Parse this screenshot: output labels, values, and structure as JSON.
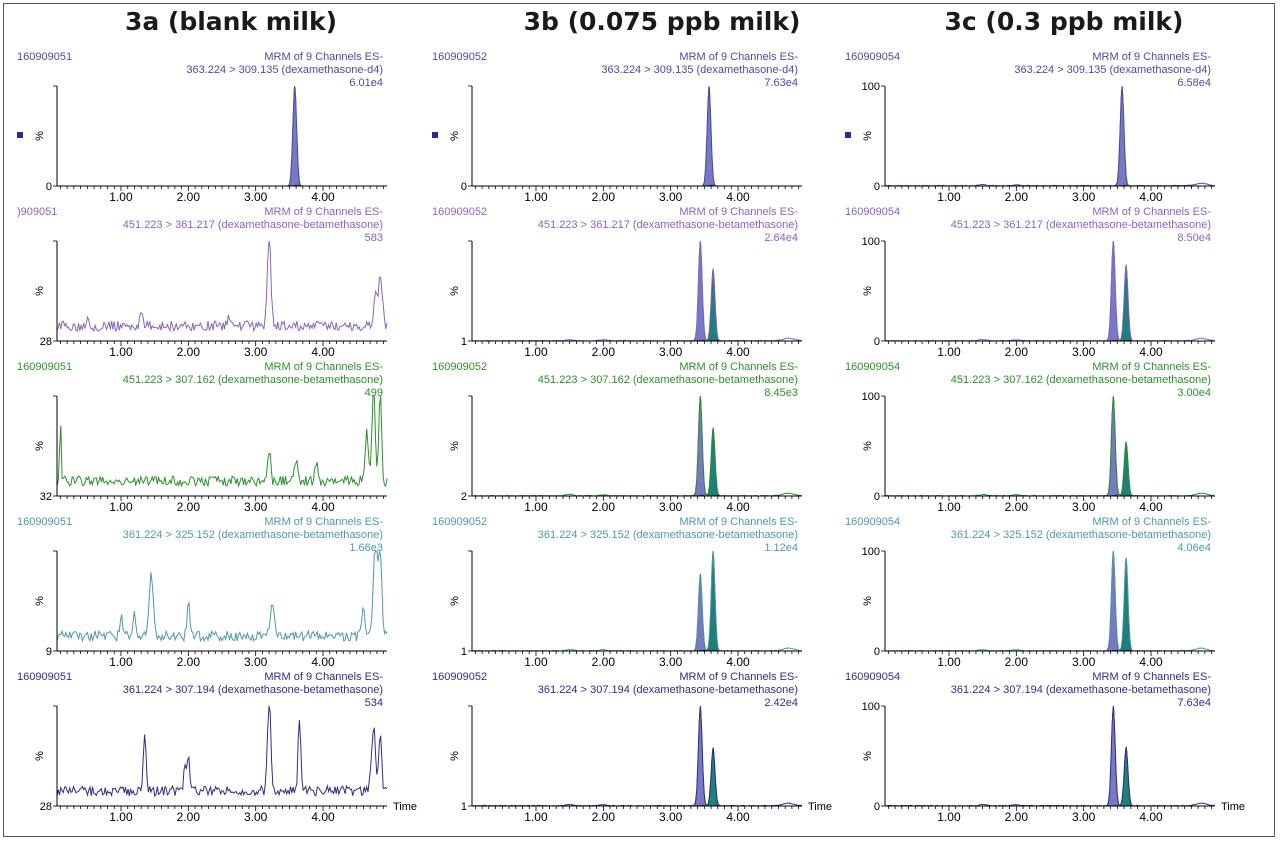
{
  "column_titles": [
    "3a (blank milk)",
    "3b (0.075 ppb milk)",
    "3c (0.3 ppb milk)"
  ],
  "header_label": "MRM of 9 Channels ES-",
  "percent_label": "%",
  "time_label": "Time",
  "colors": {
    "ch1": "#4b4ba5",
    "ch2": "#8a64c0",
    "ch3": "#2f8f2f",
    "ch4": "#4f9aa6",
    "ch5": "#2e2e86",
    "peak_fill_a": "#7779c4",
    "peak_fill_b": "#1f7f7a"
  },
  "chart_data": {
    "type": "line",
    "x_range": [
      0.05,
      4.95
    ],
    "x_ticks": [
      1.0,
      2.0,
      3.0,
      4.0
    ],
    "x_tick_labels": [
      "1.00",
      "2.00",
      "3.00",
      "4.00"
    ],
    "columns": [
      {
        "column": "3a (blank milk)",
        "rows": [
          {
            "sample_id": "160909051",
            "transition": "363.224 > 309.135 (dexamethasone-d4)",
            "intensity": "6.01e4",
            "y_min_label": "0",
            "y_max_label": "",
            "marker": true,
            "peaks": [
              {
                "rt": 3.58,
                "height": 1.0
              }
            ],
            "noise": "none"
          },
          {
            "sample_id": ")909051",
            "transition": "451.223 > 361.217 (dexamethasone-betamethasone)",
            "intensity": "583",
            "y_min_label": "28",
            "y_max_label": "",
            "marker": false,
            "peaks": [],
            "noise": "blank1"
          },
          {
            "sample_id": "160909051",
            "transition": "451.223 > 307.162 (dexamethasone-betamethasone)",
            "intensity": "499",
            "y_min_label": "32",
            "y_max_label": "",
            "marker": false,
            "peaks": [],
            "noise": "blank2"
          },
          {
            "sample_id": "160909051",
            "transition": "361.224 > 325.152 (dexamethasone-betamethasone)",
            "intensity": "1.66e3",
            "y_min_label": "9",
            "y_max_label": "",
            "marker": false,
            "peaks": [],
            "noise": "blank3"
          },
          {
            "sample_id": "160909051",
            "transition": "361.224 > 307.194 (dexamethasone-betamethasone)",
            "intensity": "534",
            "y_min_label": "28",
            "y_max_label": "",
            "marker": false,
            "peaks": [],
            "noise": "blank4"
          }
        ]
      },
      {
        "column": "3b (0.075 ppb milk)",
        "rows": [
          {
            "sample_id": "160909052",
            "transition": "363.224 > 309.135 (dexamethasone-d4)",
            "intensity": "7.63e4",
            "y_min_label": "0",
            "y_max_label": "",
            "marker": true,
            "peaks": [
              {
                "rt": 3.57,
                "height": 1.0
              }
            ],
            "noise": "none"
          },
          {
            "sample_id": "160909052",
            "transition": "451.223 > 361.217 (dexamethasone-betamethasone)",
            "intensity": "2.64e4",
            "y_min_label": "1",
            "y_max_label": "",
            "marker": false,
            "peaks": [
              {
                "rt": 3.44,
                "height": 1.0
              },
              {
                "rt": 3.63,
                "height": 0.72
              }
            ],
            "noise": "low"
          },
          {
            "sample_id": "160909052",
            "transition": "451.223 > 307.162 (dexamethasone-betamethasone)",
            "intensity": "8.45e3",
            "y_min_label": "2",
            "y_max_label": "",
            "marker": false,
            "peaks": [
              {
                "rt": 3.44,
                "height": 1.0
              },
              {
                "rt": 3.63,
                "height": 0.68
              }
            ],
            "noise": "low"
          },
          {
            "sample_id": "160909052",
            "transition": "361.224 > 325.152 (dexamethasone-betamethasone)",
            "intensity": "1.12e4",
            "y_min_label": "1",
            "y_max_label": "",
            "marker": false,
            "peaks": [
              {
                "rt": 3.44,
                "height": 0.77
              },
              {
                "rt": 3.63,
                "height": 1.0
              }
            ],
            "noise": "low"
          },
          {
            "sample_id": "160909052",
            "transition": "361.224 > 307.194 (dexamethasone-betamethasone)",
            "intensity": "2.42e4",
            "y_min_label": "1",
            "y_max_label": "",
            "marker": false,
            "peaks": [
              {
                "rt": 3.44,
                "height": 1.0
              },
              {
                "rt": 3.63,
                "height": 0.58
              }
            ],
            "noise": "low"
          }
        ]
      },
      {
        "column": "3c (0.3 ppb milk)",
        "rows": [
          {
            "sample_id": "160909054",
            "transition": "363.224 > 309.135 (dexamethasone-d4)",
            "intensity": "6.58e4",
            "y_min_label": "0",
            "y_max_label": "100",
            "marker": true,
            "peaks": [
              {
                "rt": 3.57,
                "height": 1.0
              }
            ],
            "noise": "low"
          },
          {
            "sample_id": "160909054",
            "transition": "451.223 > 361.217 (dexamethasone-betamethasone)",
            "intensity": "8.50e4",
            "y_min_label": "0",
            "y_max_label": "100",
            "marker": false,
            "peaks": [
              {
                "rt": 3.44,
                "height": 1.0
              },
              {
                "rt": 3.63,
                "height": 0.76
              }
            ],
            "noise": "low"
          },
          {
            "sample_id": "160909054",
            "transition": "451.223 > 307.162 (dexamethasone-betamethasone)",
            "intensity": "3.00e4",
            "y_min_label": "0",
            "y_max_label": "100",
            "marker": false,
            "peaks": [
              {
                "rt": 3.44,
                "height": 1.0
              },
              {
                "rt": 3.63,
                "height": 0.54
              }
            ],
            "noise": "low"
          },
          {
            "sample_id": "160909054",
            "transition": "361.224 > 325.152 (dexamethasone-betamethasone)",
            "intensity": "4.06e4",
            "y_min_label": "0",
            "y_max_label": "100",
            "marker": false,
            "peaks": [
              {
                "rt": 3.44,
                "height": 1.0
              },
              {
                "rt": 3.63,
                "height": 0.93
              }
            ],
            "noise": "low"
          },
          {
            "sample_id": "160909054",
            "transition": "361.224 > 307.194 (dexamethasone-betamethasone)",
            "intensity": "7.63e4",
            "y_min_label": "0",
            "y_max_label": "100",
            "marker": false,
            "peaks": [
              {
                "rt": 3.44,
                "height": 1.0
              },
              {
                "rt": 3.63,
                "height": 0.59
              }
            ],
            "noise": "low"
          }
        ]
      }
    ]
  }
}
